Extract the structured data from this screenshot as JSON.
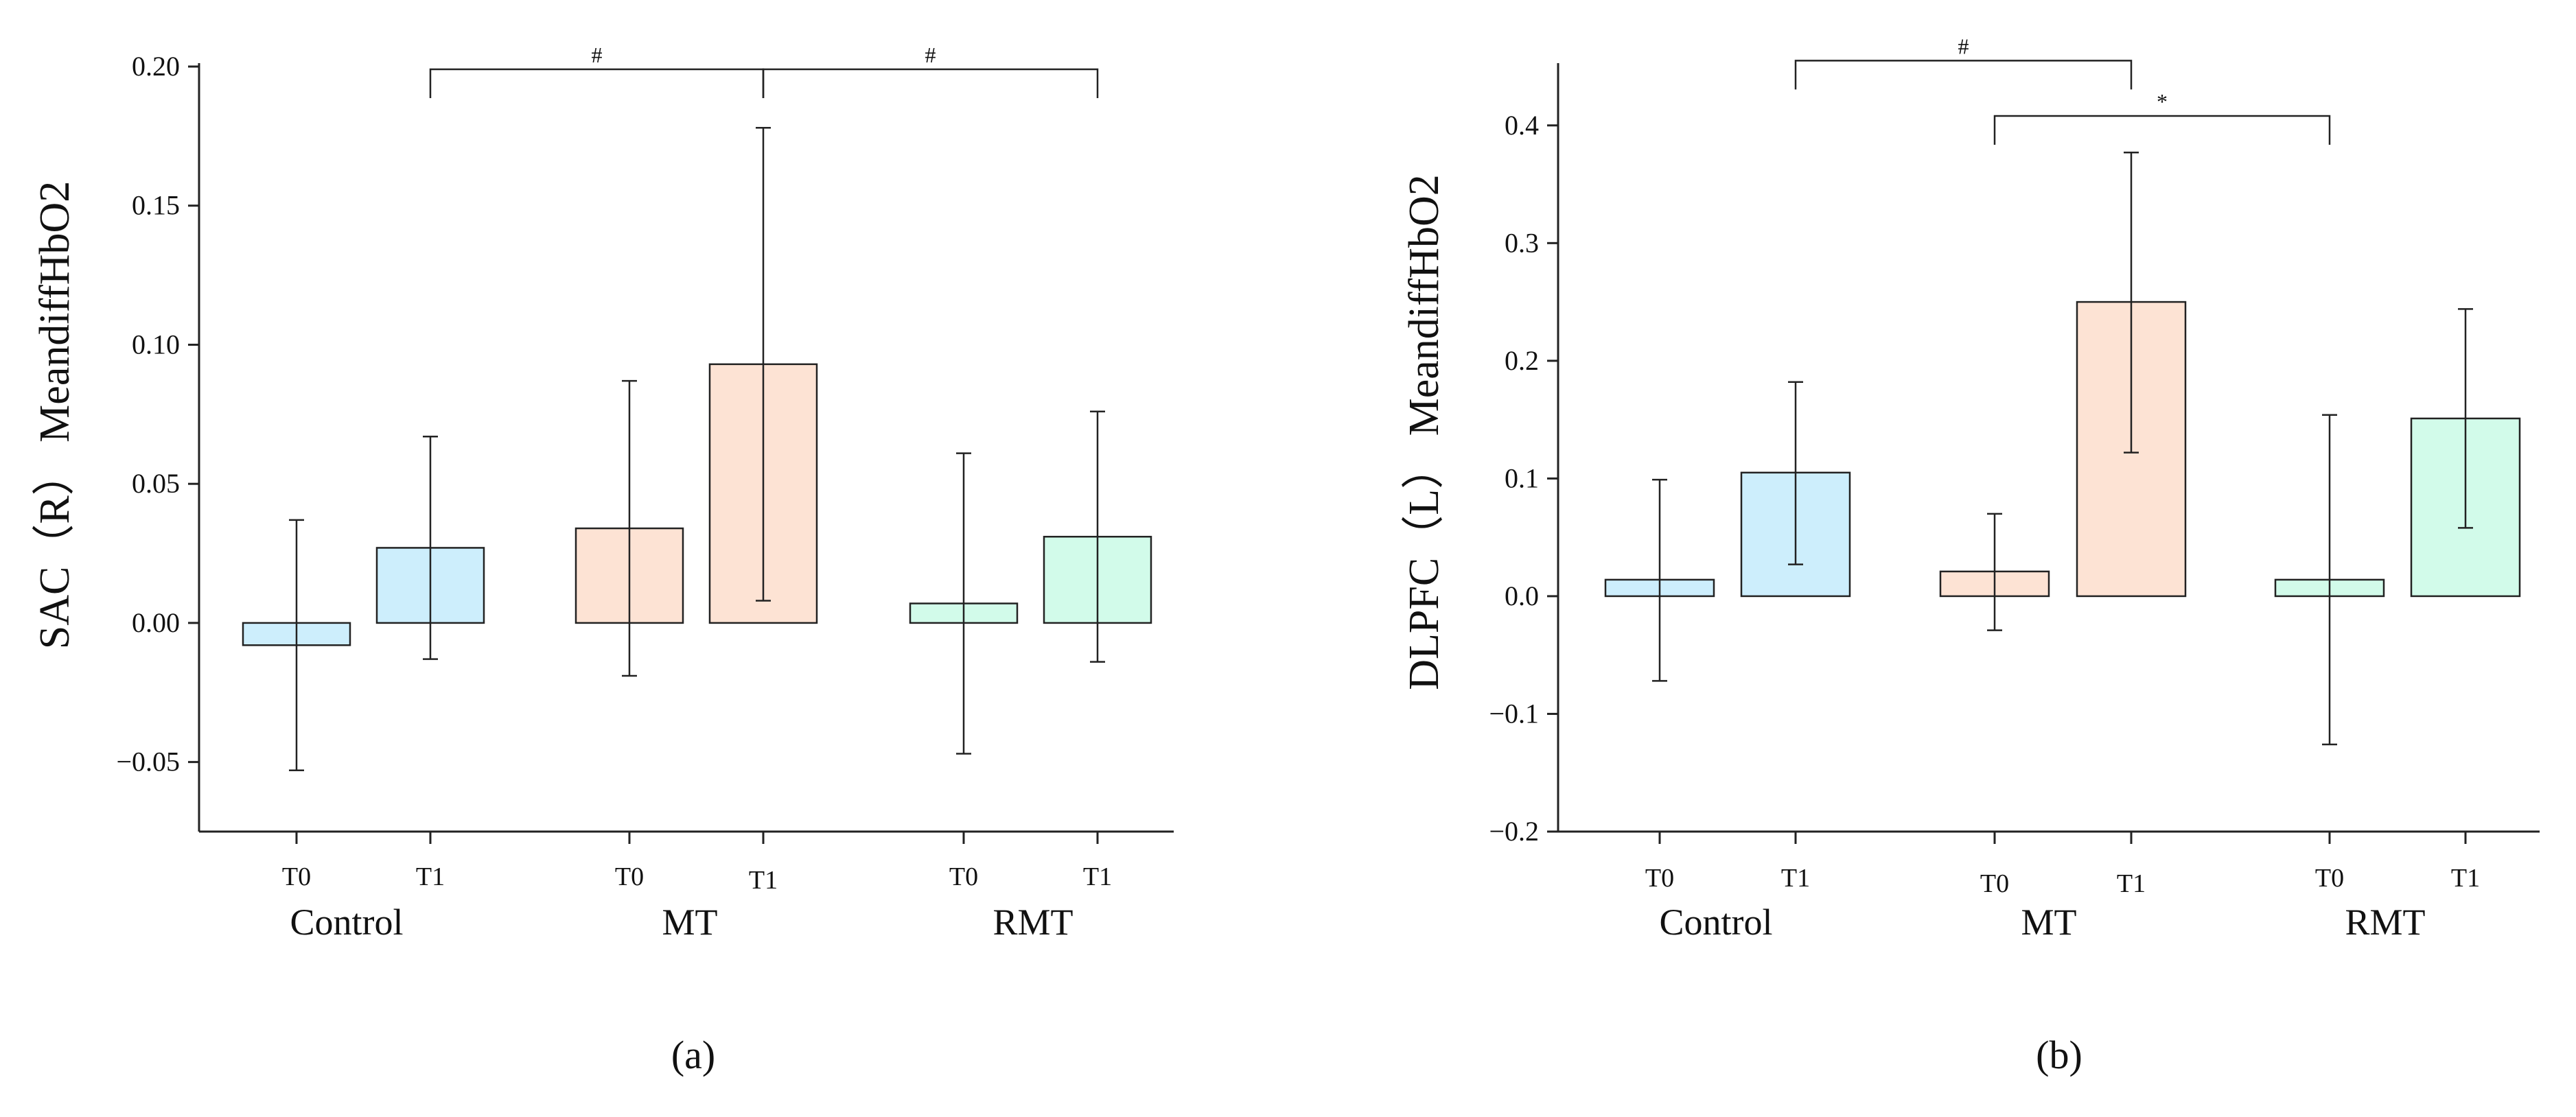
{
  "chart_data": [
    {
      "id": "a",
      "type": "bar",
      "panel_label": "(a)",
      "ylabel": "SAC（R） MeandiffHbO2",
      "ylim": [
        -0.075,
        0.2
      ],
      "yticks": [
        -0.05,
        0.0,
        0.05,
        0.1,
        0.15,
        0.2
      ],
      "ytick_labels": [
        "−0.05",
        "0.00",
        "0.05",
        "0.10",
        "0.15",
        "0.20"
      ],
      "groups": [
        {
          "name": "Control",
          "bars": [
            {
              "label": "T0",
              "value": -0.008,
              "err_low": -0.053,
              "err_high": 0.037,
              "color": "#cdeefc"
            },
            {
              "label": "T1",
              "value": 0.027,
              "err_low": -0.013,
              "err_high": 0.067,
              "color": "#cdeefc"
            }
          ]
        },
        {
          "name": "MT",
          "bars": [
            {
              "label": "T0",
              "value": 0.034,
              "err_low": -0.019,
              "err_high": 0.087,
              "color": "#fde3d4"
            },
            {
              "label": "T1",
              "value": 0.093,
              "err_low": 0.008,
              "err_high": 0.178,
              "color": "#fde3d4"
            }
          ]
        },
        {
          "name": "RMT",
          "bars": [
            {
              "label": "T0",
              "value": 0.007,
              "err_low": -0.047,
              "err_high": 0.061,
              "color": "#d2fbea"
            },
            {
              "label": "T1",
              "value": 0.031,
              "err_low": -0.014,
              "err_high": 0.076,
              "color": "#d2fbea"
            }
          ]
        }
      ],
      "significance": [
        {
          "from": [
            0,
            1
          ],
          "to": [
            1,
            1
          ],
          "label": "#",
          "level": 0.199
        },
        {
          "from": [
            1,
            1
          ],
          "to": [
            2,
            1
          ],
          "label": "#",
          "level": 0.199
        }
      ]
    },
    {
      "id": "b",
      "type": "bar",
      "panel_label": "(b)",
      "ylabel": "DLPFC（L） MeandiffHbO2",
      "ylim": [
        -0.2,
        0.45
      ],
      "yticks": [
        -0.2,
        -0.1,
        0.0,
        0.1,
        0.2,
        0.3,
        0.4
      ],
      "ytick_labels": [
        "−0.2",
        "−0.1",
        "0.0",
        "0.1",
        "0.2",
        "0.3",
        "0.4"
      ],
      "groups": [
        {
          "name": "Control",
          "bars": [
            {
              "label": "T0",
              "value": 0.014,
              "err_low": -0.072,
              "err_high": 0.099,
              "color": "#cdeefc"
            },
            {
              "label": "T1",
              "value": 0.105,
              "err_low": 0.027,
              "err_high": 0.182,
              "color": "#cdeefc"
            }
          ]
        },
        {
          "name": "MT",
          "bars": [
            {
              "label": "T0",
              "value": 0.021,
              "err_low": -0.029,
              "err_high": 0.07,
              "color": "#fde3d4"
            },
            {
              "label": "T1",
              "value": 0.25,
              "err_low": 0.122,
              "err_high": 0.377,
              "color": "#fde3d4"
            }
          ]
        },
        {
          "name": "RMT",
          "bars": [
            {
              "label": "T0",
              "value": 0.014,
              "err_low": -0.126,
              "err_high": 0.154,
              "color": "#d2fbea"
            },
            {
              "label": "T1",
              "value": 0.151,
              "err_low": 0.058,
              "err_high": 0.244,
              "color": "#d2fbea"
            }
          ]
        }
      ],
      "significance": [
        {
          "from": [
            0,
            1
          ],
          "to": [
            1,
            1
          ],
          "label": "#",
          "level": 0.455
        },
        {
          "from": [
            1,
            0
          ],
          "to": [
            2,
            0
          ],
          "label": "*",
          "level": 0.408
        }
      ]
    }
  ]
}
